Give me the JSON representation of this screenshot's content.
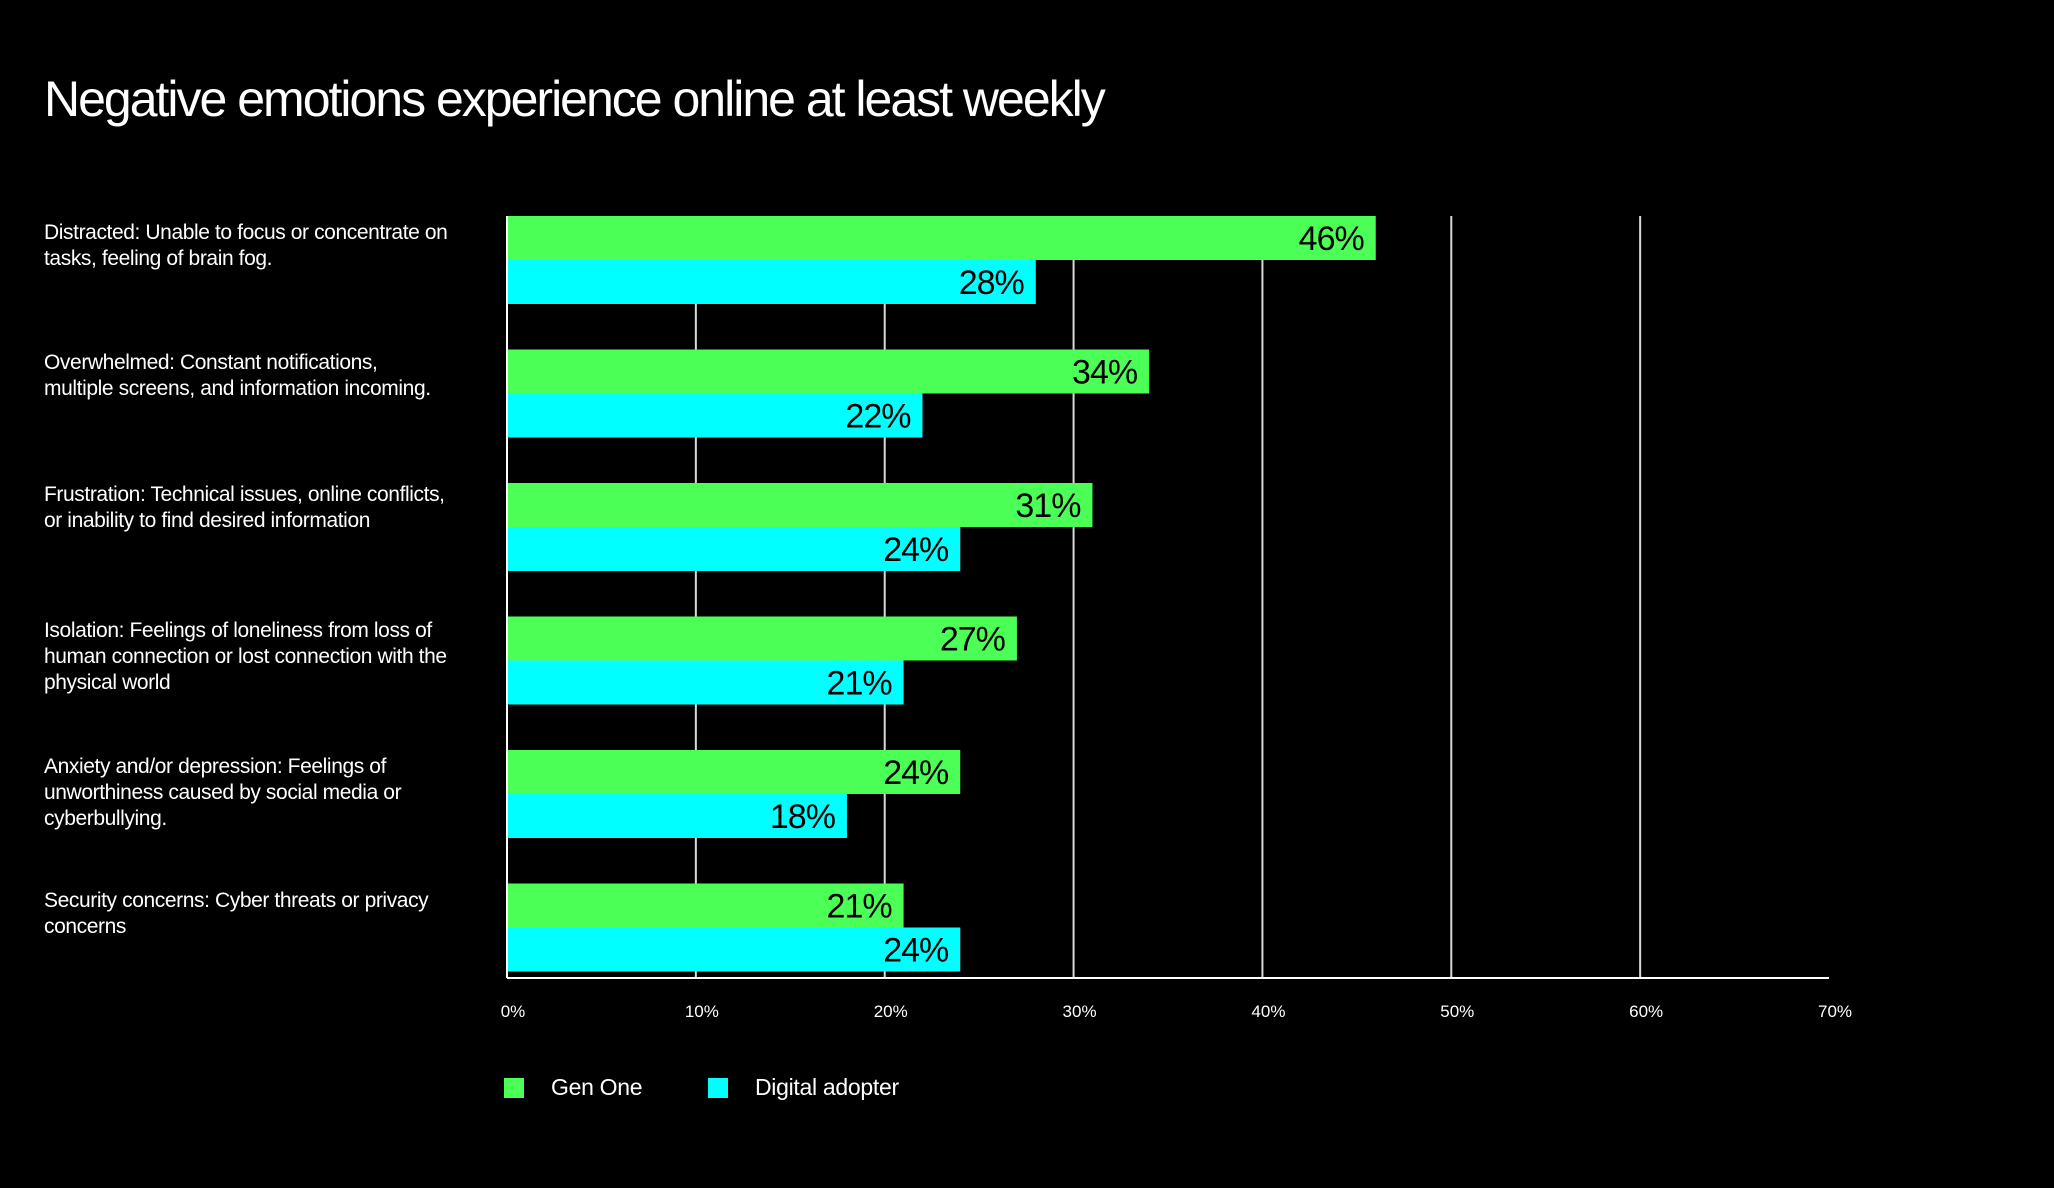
{
  "chart_data": {
    "type": "bar",
    "orientation": "horizontal",
    "title": "Negative emotions experience online at least weekly",
    "categories": [
      "Distracted: Unable to focus or concentrate on tasks, feeling of brain fog.",
      "Overwhelmed: Constant notifications, multiple screens, and information incoming.",
      "Frustration: Technical issues, online conflicts, or inability to find desired information",
      "Isolation: Feelings of loneliness from loss of human connection or lost connection with the physical world",
      "Anxiety and/or depression: Feelings of unworthiness caused by social media or cyberbullying.",
      "Security concerns: Cyber threats or privacy concerns"
    ],
    "category_lines": [
      [
        "Distracted: Unable to focus or concentrate on",
        "tasks, feeling of brain fog."
      ],
      [
        "Overwhelmed: Constant notifications,",
        "multiple screens, and information incoming."
      ],
      [
        "Frustration: Technical issues, online conflicts,",
        "or inability to find desired information"
      ],
      [
        "Isolation: Feelings of loneliness from loss of",
        "human connection or lost connection with the",
        "physical world"
      ],
      [
        "Anxiety and/or depression: Feelings of",
        "unworthiness caused by social media or",
        "cyberbullying."
      ],
      [
        "Security concerns: Cyber threats or privacy",
        "concerns"
      ]
    ],
    "series": [
      {
        "name": "Gen One",
        "color": "#4cff57",
        "values": [
          46,
          34,
          31,
          27,
          24,
          21
        ],
        "labels": [
          "46%",
          "34%",
          "31%",
          "27%",
          "24%",
          "21%"
        ]
      },
      {
        "name": "Digital adopter",
        "color": "#00ffff",
        "values": [
          28,
          22,
          24,
          21,
          18,
          24
        ],
        "labels": [
          "28%",
          "22%",
          "24%",
          "21%",
          "18%",
          "24%"
        ]
      }
    ],
    "xlim": [
      0,
      70
    ],
    "xticks": [
      0,
      10,
      20,
      30,
      40,
      50,
      60,
      70
    ],
    "xtick_labels": [
      "0%",
      "10%",
      "20%",
      "30%",
      "40%",
      "50%",
      "60%",
      "70%"
    ],
    "grid": true,
    "legend_position": "bottom-left"
  }
}
